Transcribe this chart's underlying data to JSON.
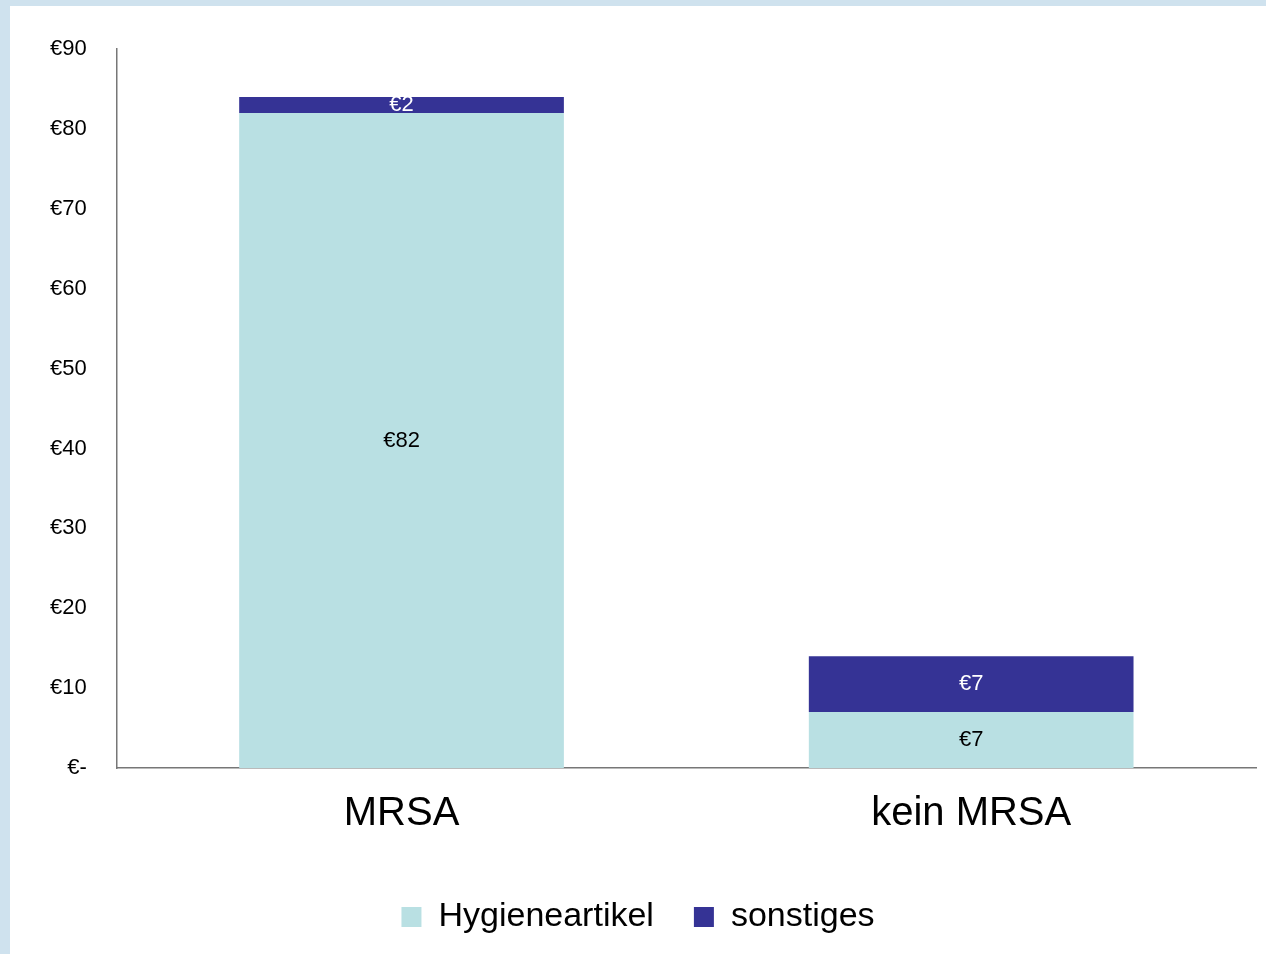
{
  "chart_data": {
    "type": "bar",
    "stacked": true,
    "categories": [
      "MRSA",
      "kein MRSA"
    ],
    "series": [
      {
        "name": "Hygieneartikel",
        "color": "#b9e0e3",
        "values": [
          82,
          7
        ],
        "value_labels": [
          "€82",
          "€7"
        ]
      },
      {
        "name": "sonstiges",
        "color": "#353395",
        "values": [
          2,
          7
        ],
        "value_labels": [
          "€2",
          "€7"
        ]
      }
    ],
    "ylim": [
      0,
      90
    ],
    "yticks": [
      {
        "value": 0,
        "label": "€-"
      },
      {
        "value": 10,
        "label": "€10"
      },
      {
        "value": 20,
        "label": "€20"
      },
      {
        "value": 30,
        "label": "€30"
      },
      {
        "value": 40,
        "label": "€40"
      },
      {
        "value": 50,
        "label": "€50"
      },
      {
        "value": 60,
        "label": "€60"
      },
      {
        "value": 70,
        "label": "€70"
      },
      {
        "value": 80,
        "label": "€80"
      },
      {
        "value": 90,
        "label": "€90"
      }
    ],
    "grid": false,
    "legend": "bottom"
  }
}
